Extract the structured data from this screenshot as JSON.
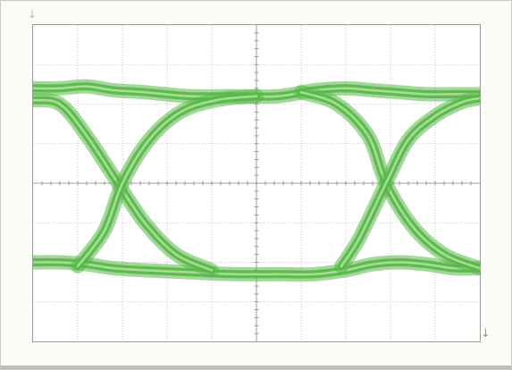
{
  "icons": {
    "top_marker": "arrow-down-icon",
    "right_marker": "arrow-down-icon"
  },
  "colors": {
    "trace": "#58b848",
    "trace_light": "#b9e6a9",
    "grid": "#b8b8b8",
    "axis": "#8a8a8a",
    "background": "#ffffff"
  },
  "chart_data": {
    "type": "line",
    "title": "",
    "xlabel": "",
    "ylabel": "",
    "grid": true,
    "divisions": {
      "x": 10,
      "y": 8
    },
    "xlim": [
      0,
      10
    ],
    "ylim": [
      -4,
      4
    ],
    "series": [
      {
        "x": [
          0,
          0.6,
          1.2,
          1.8,
          2.5,
          3.5,
          4.5,
          5.5,
          6.3,
          7.0,
          7.6,
          8.2,
          8.8,
          9.4,
          10
        ],
        "values": [
          2.4,
          2.4,
          2.45,
          2.35,
          2.3,
          2.2,
          2.2,
          2.2,
          2.35,
          2.4,
          2.35,
          2.3,
          2.25,
          2.25,
          2.25
        ]
      },
      {
        "x": [
          0,
          0.6,
          1.2,
          1.8,
          2.5,
          3.5,
          4.5,
          5.5,
          6.3,
          7.0,
          7.6,
          8.2,
          8.8,
          9.4,
          10
        ],
        "values": [
          -2.0,
          -2.0,
          -2.05,
          -2.15,
          -2.2,
          -2.25,
          -2.3,
          -2.3,
          -2.3,
          -2.2,
          -2.05,
          -2.0,
          -2.05,
          -2.15,
          -2.15
        ]
      },
      {
        "x": [
          0,
          0.6,
          1.2,
          1.9,
          2.5,
          3.2,
          4.0
        ],
        "values": [
          2.1,
          2.0,
          1.2,
          0.0,
          -1.0,
          -1.8,
          -2.2
        ]
      },
      {
        "x": [
          1.0,
          1.6,
          2.0,
          2.6,
          3.3,
          4.1,
          5.0
        ],
        "values": [
          -2.1,
          -1.2,
          0.0,
          1.1,
          1.8,
          2.1,
          2.2
        ]
      },
      {
        "x": [
          6.0,
          6.8,
          7.5,
          7.9,
          8.5,
          9.2,
          10
        ],
        "values": [
          2.3,
          2.0,
          1.2,
          0.0,
          -1.1,
          -1.8,
          -2.15
        ]
      },
      {
        "x": [
          6.9,
          7.3,
          7.9,
          8.4,
          9.0,
          9.6,
          10
        ],
        "values": [
          -2.1,
          -1.4,
          0.0,
          1.1,
          1.7,
          2.05,
          2.15
        ]
      }
    ]
  }
}
